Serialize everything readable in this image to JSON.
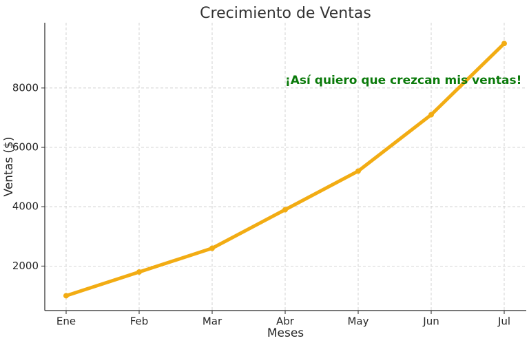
{
  "chart_data": {
    "type": "line",
    "title": "Crecimiento de Ventas",
    "xlabel": "Meses",
    "ylabel": "Ventas ($)",
    "categories": [
      "Ene",
      "Feb",
      "Mar",
      "Abr",
      "May",
      "Jun",
      "Jul"
    ],
    "series": [
      {
        "values": [
          1000,
          1800,
          2600,
          3900,
          5200,
          7100,
          9500
        ],
        "color": "#f2ac13"
      }
    ],
    "ylim": [
      500,
      10200
    ],
    "yticks": [
      2000,
      4000,
      6000,
      8000
    ],
    "grid": true,
    "annotation": {
      "text": "¡Así quiero que crezcan mis ventas!",
      "category": "Abr",
      "y": 8000,
      "color": "#0a7a0a"
    }
  }
}
